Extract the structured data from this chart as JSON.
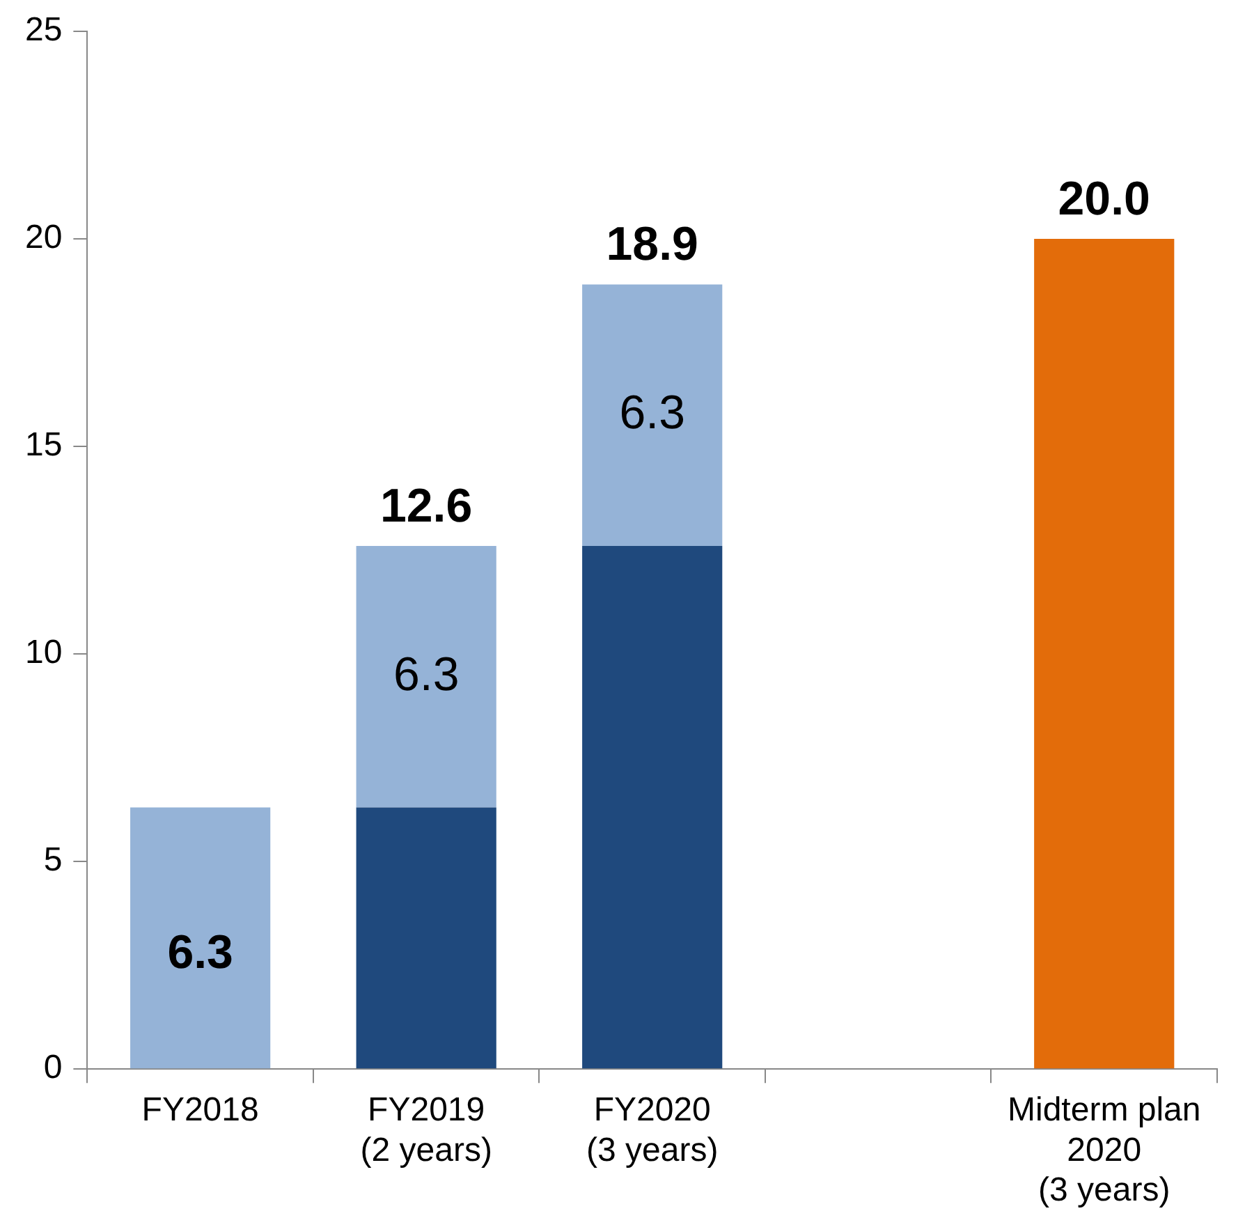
{
  "chart_data": {
    "type": "bar",
    "stacked": true,
    "categories": [
      "FY2018",
      "FY2019\n(2 years)",
      "FY2020\n(3 years)",
      null,
      "Midterm plan\n2020\n(3 years)"
    ],
    "series": [
      {
        "color": "#1f497d",
        "values": [
          null,
          6.3,
          12.6,
          null,
          null
        ]
      },
      {
        "color": "#95b3d7",
        "values": [
          6.3,
          6.3,
          6.3,
          null,
          null
        ],
        "value_labels": [
          "6.3",
          "6.3",
          "6.3",
          null,
          null
        ]
      },
      {
        "color": "#e36c0a",
        "values": [
          null,
          null,
          null,
          null,
          20.0
        ]
      }
    ],
    "totals": [
      null,
      "12.6",
      "18.9",
      null,
      "20.0"
    ],
    "ylim": [
      0,
      25
    ],
    "yticks": [
      0,
      5,
      10,
      15,
      20,
      25
    ],
    "grid": false,
    "legend": false
  }
}
